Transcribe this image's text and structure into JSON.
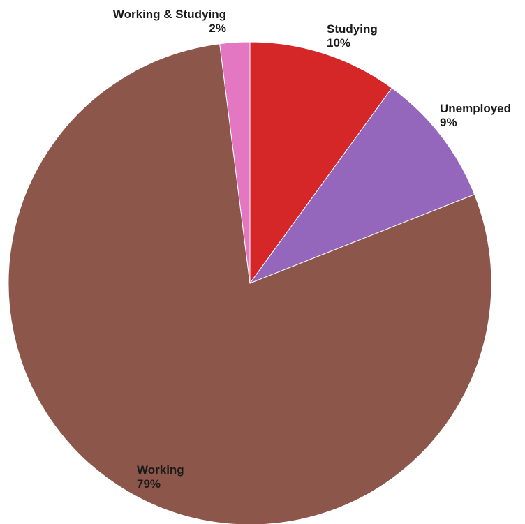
{
  "chart_data": {
    "type": "pie",
    "title": "",
    "slices": [
      {
        "label": "Studying",
        "value": 10,
        "value_label": "10%",
        "color": "#d62728"
      },
      {
        "label": "Unemployed",
        "value": 9,
        "value_label": "9%",
        "color": "#9467bd"
      },
      {
        "label": "Working",
        "value": 79,
        "value_label": "79%",
        "color": "#8c564b"
      },
      {
        "label": "Working & Studying",
        "value": 2,
        "value_label": "2%",
        "color": "#e377c2"
      }
    ],
    "start_angle": "12 o'clock",
    "direction": "clockwise",
    "legend": "none"
  }
}
